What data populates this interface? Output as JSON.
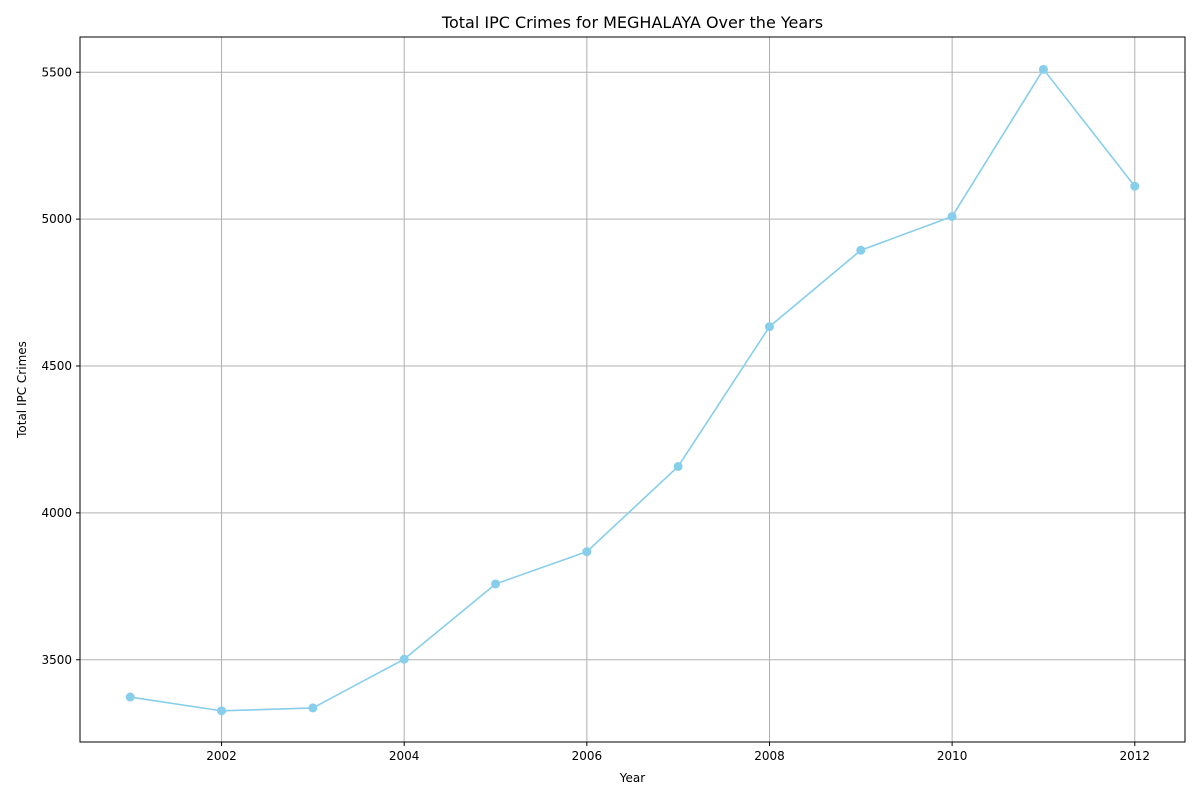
{
  "chart_data": {
    "type": "line",
    "title": "Total IPC Crimes for MEGHALAYA Over the Years",
    "xlabel": "Year",
    "ylabel": "Total IPC Crimes",
    "x": [
      2001,
      2002,
      2003,
      2004,
      2005,
      2006,
      2007,
      2008,
      2009,
      2010,
      2011,
      2012
    ],
    "series": [
      {
        "values": [
          3373,
          3326,
          3336,
          3502,
          3758,
          3868,
          4158,
          4634,
          4894,
          5009,
          5510,
          5112
        ],
        "color": "#87ceeb",
        "marker": "circle"
      }
    ],
    "xlim": [
      2000.45,
      2012.55
    ],
    "ylim": [
      3220,
      5620
    ],
    "xticks": [
      2002,
      2004,
      2006,
      2008,
      2010,
      2012
    ],
    "xtick_labels": [
      "2002",
      "2004",
      "2006",
      "2008",
      "2010",
      "2012"
    ],
    "yticks": [
      3500,
      4000,
      4500,
      5000,
      5500
    ],
    "ytick_labels": [
      "3500",
      "4000",
      "4500",
      "5000",
      "5500"
    ],
    "grid": true,
    "legend": "none"
  }
}
